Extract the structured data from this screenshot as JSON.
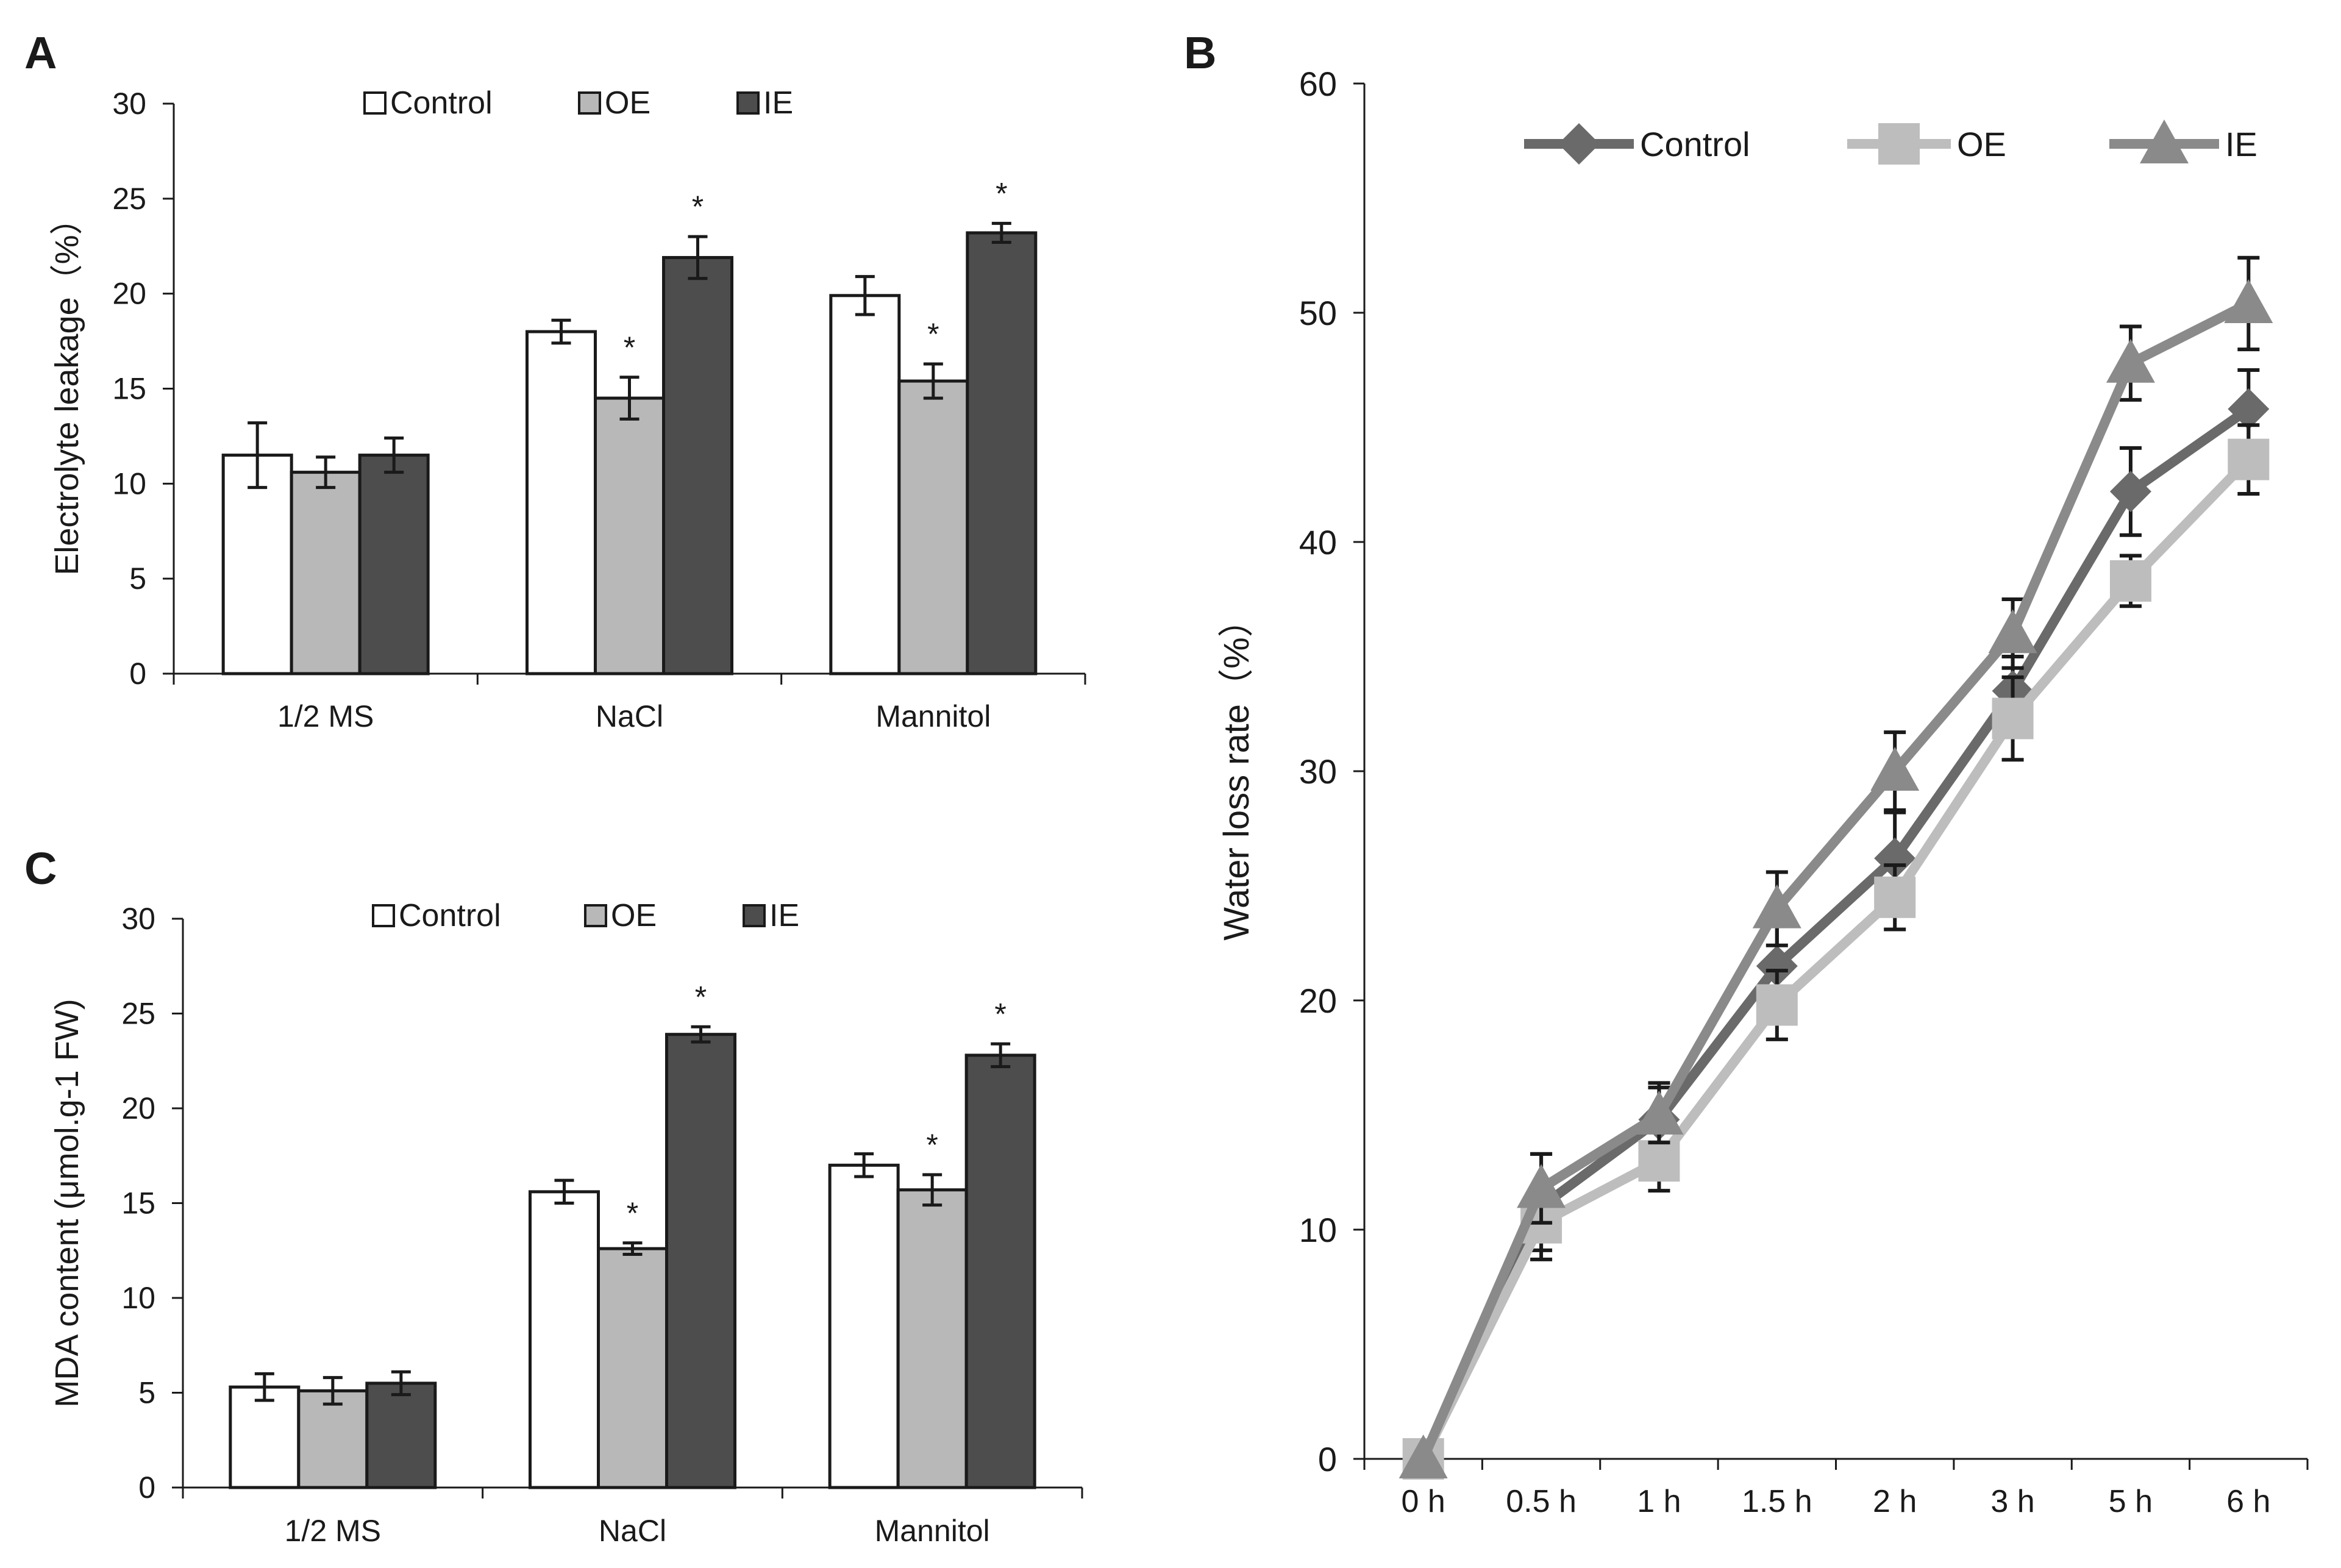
{
  "chart_data": [
    {
      "panel": "A",
      "type": "bar",
      "title": "",
      "xlabel": "",
      "ylabel": "Electrolyte leakage（%）",
      "ylim": [
        0,
        30
      ],
      "yticks": [
        0,
        5,
        10,
        15,
        20,
        25,
        30
      ],
      "grid": false,
      "legend_position": "top",
      "categories": [
        "1/2 MS",
        "NaCl",
        "Mannitol"
      ],
      "series": [
        {
          "name": "Control",
          "color": "#ffffff",
          "values": [
            11.5,
            18.0,
            19.9
          ],
          "errors": [
            1.7,
            0.6,
            1.0
          ],
          "annotations": [
            "",
            "",
            ""
          ]
        },
        {
          "name": "OE",
          "color": "#b8b8b8",
          "values": [
            10.6,
            14.5,
            15.4
          ],
          "errors": [
            0.8,
            1.1,
            0.9
          ],
          "annotations": [
            "",
            "*",
            "*"
          ]
        },
        {
          "name": "IE",
          "color": "#4d4d4d",
          "values": [
            11.5,
            21.9,
            23.2
          ],
          "errors": [
            0.9,
            1.1,
            0.5
          ],
          "annotations": [
            "",
            "*",
            "*"
          ]
        }
      ]
    },
    {
      "panel": "B",
      "type": "line",
      "title": "",
      "xlabel": "",
      "ylabel": "Water loss rate（%）",
      "ylim": [
        0,
        60
      ],
      "yticks": [
        0,
        10,
        20,
        30,
        40,
        50,
        60
      ],
      "grid": false,
      "legend_position": "top",
      "x": [
        "0 h",
        "0.5 h",
        "1 h",
        "1.5 h",
        "2 h",
        "3 h",
        "5 h",
        "6 h"
      ],
      "series": [
        {
          "name": "Control",
          "color": "#6a6a6a",
          "marker": "diamond",
          "values": [
            0,
            11.0,
            14.8,
            21.5,
            26.2,
            33.5,
            42.2,
            45.8
          ],
          "errors": [
            0,
            2.3,
            1.6,
            1.8,
            2.0,
            1.5,
            1.9,
            1.7
          ]
        },
        {
          "name": "OE",
          "color": "#bdbdbd",
          "marker": "square",
          "values": [
            0,
            10.3,
            13.0,
            19.8,
            24.5,
            32.3,
            38.3,
            43.6
          ],
          "errors": [
            0,
            1.2,
            1.3,
            1.5,
            1.4,
            1.8,
            1.1,
            1.5
          ]
        },
        {
          "name": "IE",
          "color": "#8a8a8a",
          "marker": "triangle",
          "values": [
            0,
            11.8,
            15.0,
            24.0,
            30.0,
            36.0,
            47.8,
            50.4
          ],
          "errors": [
            0,
            1.5,
            1.2,
            1.6,
            1.7,
            1.5,
            1.6,
            2.0
          ]
        }
      ]
    },
    {
      "panel": "C",
      "type": "bar",
      "title": "",
      "xlabel": "",
      "ylabel": "MDA content (μmol.g-1 FW)",
      "ylim": [
        0,
        30
      ],
      "yticks": [
        0,
        5,
        10,
        15,
        20,
        25,
        30
      ],
      "grid": false,
      "legend_position": "top",
      "categories": [
        "1/2 MS",
        "NaCl",
        "Mannitol"
      ],
      "series": [
        {
          "name": "Control",
          "color": "#ffffff",
          "values": [
            5.3,
            15.6,
            17.0
          ],
          "errors": [
            0.7,
            0.6,
            0.6
          ],
          "annotations": [
            "",
            "",
            ""
          ]
        },
        {
          "name": "OE",
          "color": "#b8b8b8",
          "values": [
            5.1,
            12.6,
            15.7
          ],
          "errors": [
            0.7,
            0.3,
            0.8
          ],
          "annotations": [
            "",
            "*",
            "*"
          ]
        },
        {
          "name": "IE",
          "color": "#4d4d4d",
          "values": [
            5.5,
            23.9,
            22.8
          ],
          "errors": [
            0.6,
            0.4,
            0.6
          ],
          "annotations": [
            "",
            "*",
            "*"
          ]
        }
      ]
    }
  ]
}
